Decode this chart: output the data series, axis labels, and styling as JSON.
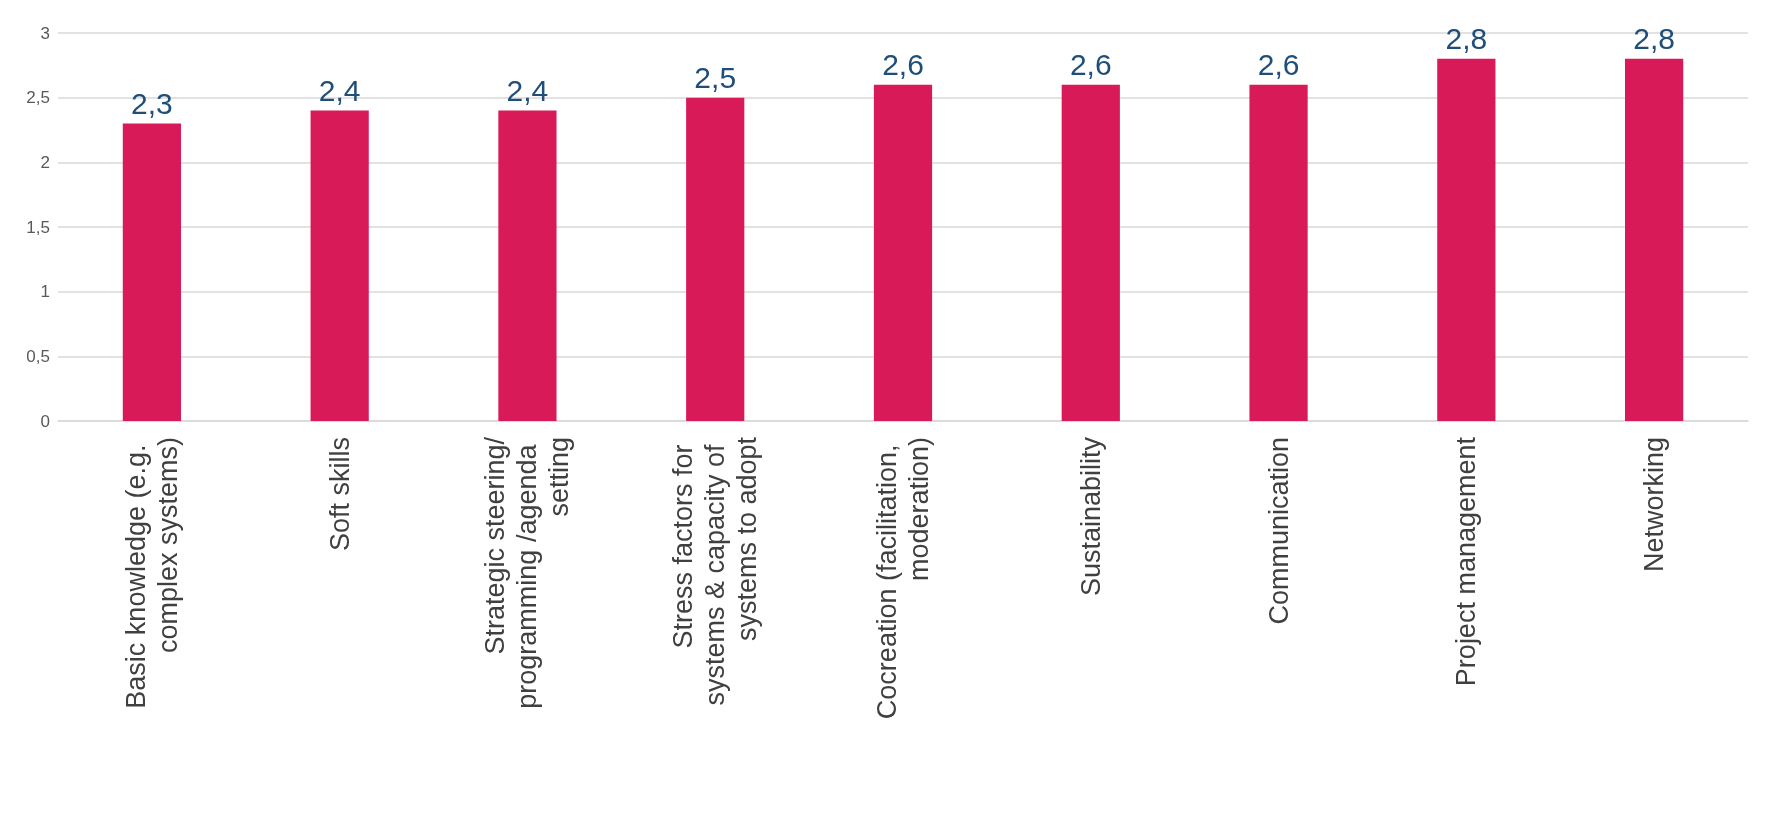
{
  "chart_data": {
    "type": "bar",
    "categories": [
      "Basic knowledge (e.g. complex systems)",
      "Soft skills",
      "Strategic steering/programming /agenda setting",
      "Stress factors for systems & capacity of systems to adopt",
      "Cocreation (facilitation, moderation)",
      "Sustainability",
      "Communication",
      "Project management",
      "Networking"
    ],
    "values": [
      2.3,
      2.4,
      2.4,
      2.5,
      2.6,
      2.6,
      2.6,
      2.8,
      2.8
    ],
    "value_labels": [
      "2,3",
      "2,4",
      "2,4",
      "2,5",
      "2,6",
      "2,6",
      "2,6",
      "2,8",
      "2,8"
    ],
    "color": "#d81b58",
    "ylim": [
      0,
      3
    ],
    "yticks": [
      0,
      {
        "value": 0.5,
        "label": "0,5"
      },
      1,
      {
        "value": 1.5,
        "label": "1,5"
      },
      2,
      {
        "value": 2.5,
        "label": "2,5"
      },
      3
    ],
    "grid": "y"
  }
}
